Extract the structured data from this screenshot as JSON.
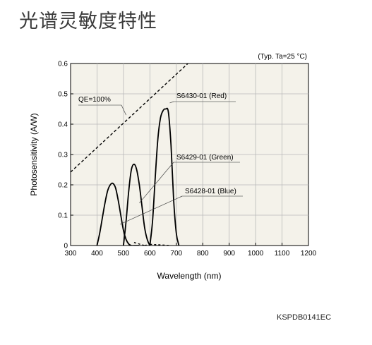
{
  "page": {
    "title": "光谱灵敏度特性",
    "doc_code": "KSPDB0141EC"
  },
  "colors": {
    "plot_background": "#f4f2ea",
    "grid": "#b8b8b8",
    "curve": "#000000"
  },
  "chart_data": {
    "type": "line",
    "title": "",
    "note": "(Typ. Ta=25 °C)",
    "xlabel": "Wavelength (nm)",
    "ylabel": "Photosensitivity (A/W)",
    "xlim": [
      300,
      1200
    ],
    "ylim": [
      0,
      0.6
    ],
    "grid": true,
    "x_ticks": [
      "300",
      "400",
      "500",
      "600",
      "700",
      "800",
      "900",
      "1000",
      "1100",
      "1200"
    ],
    "y_ticks": [
      "0",
      "0.1",
      "0.2",
      "0.3",
      "0.4",
      "0.5",
      "0.6"
    ],
    "series": [
      {
        "name": "QE=100%",
        "style": "dashed",
        "x": [
          300,
          750
        ],
        "y": [
          0.242,
          0.605
        ]
      },
      {
        "name": "S6428-01 (Blue)",
        "style": "solid",
        "x": [
          400,
          410,
          420,
          430,
          440,
          450,
          460,
          470,
          480,
          490,
          500,
          510,
          520,
          530,
          540,
          550,
          560
        ],
        "y": [
          0.0,
          0.04,
          0.09,
          0.14,
          0.18,
          0.2,
          0.205,
          0.19,
          0.15,
          0.1,
          0.05,
          0.02,
          0.005,
          0.0,
          0.0,
          0.0,
          0.0
        ],
        "dashed_tail": {
          "x": [
            540,
            560,
            580
          ],
          "y": [
            0.01,
            0.005,
            0.0
          ]
        }
      },
      {
        "name": "S6429-01 (Green)",
        "style": "solid",
        "x": [
          500,
          510,
          520,
          530,
          540,
          550,
          560,
          570,
          580,
          590,
          600
        ],
        "y": [
          0.0,
          0.08,
          0.18,
          0.25,
          0.268,
          0.25,
          0.2,
          0.13,
          0.06,
          0.02,
          0.0
        ],
        "dashed_tail": {
          "x": [
            600,
            620,
            640,
            660,
            680
          ],
          "y": [
            0.004,
            0.003,
            0.002,
            0.001,
            0.0
          ]
        }
      },
      {
        "name": "S6430-01 (Red)",
        "style": "solid",
        "x": [
          600,
          610,
          620,
          630,
          640,
          650,
          660,
          670,
          680,
          690,
          700,
          710
        ],
        "y": [
          0.0,
          0.08,
          0.22,
          0.35,
          0.42,
          0.445,
          0.45,
          0.44,
          0.33,
          0.15,
          0.04,
          0.0
        ],
        "dashed_head": {
          "x": [
            580,
            590,
            600
          ],
          "y": [
            0.0,
            0.002,
            0.005
          ]
        }
      }
    ],
    "annotations": [
      {
        "text": "QE=100%",
        "target_x": 510,
        "target_y": 0.43
      },
      {
        "text": "S6430-01 (Red)",
        "target_x": 675,
        "target_y": 0.47
      },
      {
        "text": "S6429-01 (Green)",
        "target_x": 560,
        "target_y": 0.14
      },
      {
        "text": "S6428-01 (Blue)",
        "target_x": 487,
        "target_y": 0.07
      }
    ]
  }
}
